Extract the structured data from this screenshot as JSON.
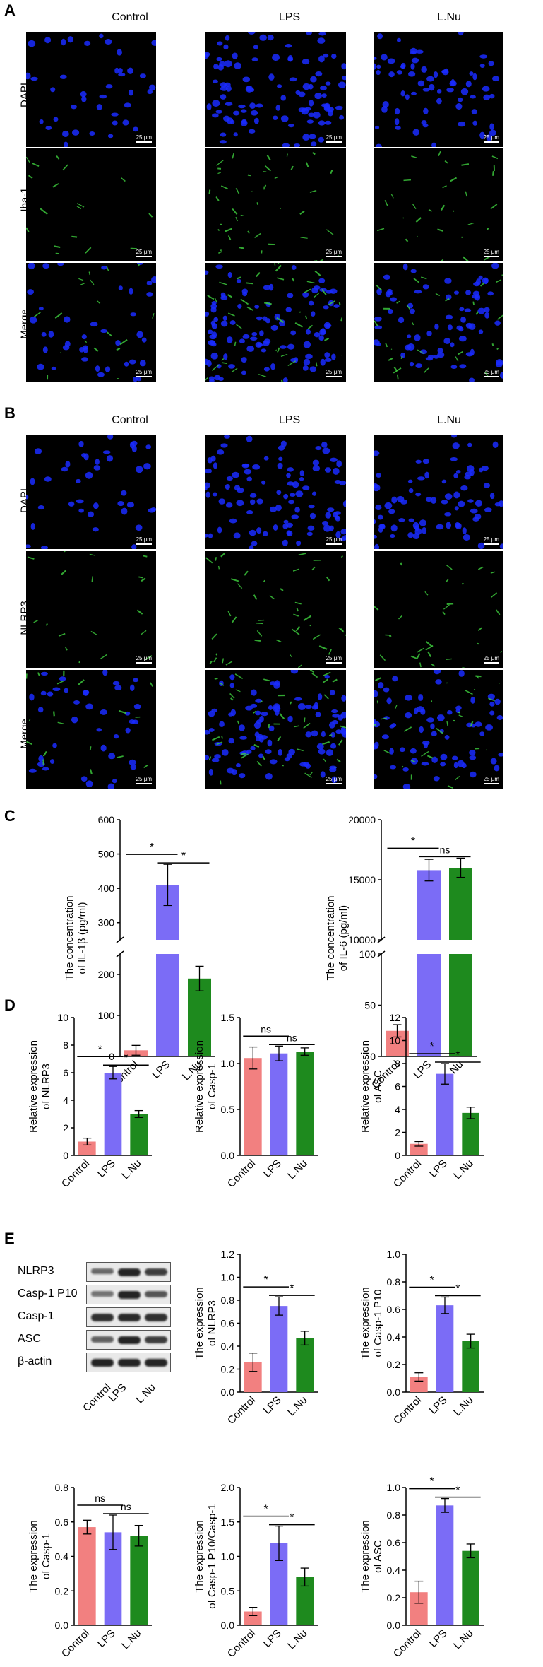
{
  "panels": {
    "A": "A",
    "B": "B",
    "C": "C",
    "D": "D",
    "E": "E"
  },
  "micrograph_columns": [
    "Control",
    "LPS",
    "L.Nu"
  ],
  "panelA_rows": [
    "DAPI",
    "Iba-1",
    "Merge"
  ],
  "panelB_rows": [
    "DAPI",
    "NLRP3",
    "Merge"
  ],
  "scale_bar": "25 μm",
  "blot_labels": [
    "NLRP3",
    "Casp-1 P10",
    "Casp-1",
    "ASC",
    "β-actin"
  ],
  "blot_categories": [
    "Control",
    "LPS",
    "L.Nu"
  ],
  "colors": {
    "control": "#f28080",
    "lps": "#7b6cf6",
    "lnu": "#1e8a1e",
    "dapi": "#1a2cff",
    "green": "#3fd13f"
  },
  "chart_data": [
    {
      "id": "c1",
      "type": "bar",
      "categories": [
        "Control",
        "LPS",
        "L.Nu"
      ],
      "values": [
        15,
        410,
        190
      ],
      "errors": [
        12,
        60,
        30
      ],
      "ylabel": "The concentration of IL-1β (pg/ml)",
      "broken_axis": {
        "lower": [
          0,
          250
        ],
        "upper": [
          250,
          600
        ]
      },
      "yticks": [
        0,
        100,
        200,
        300,
        400,
        500,
        600
      ],
      "significance": [
        {
          "label": "*",
          "from": 0,
          "to": 1
        },
        {
          "label": "*",
          "from": 1,
          "to": 2
        }
      ]
    },
    {
      "id": "c2",
      "type": "bar",
      "categories": [
        "Control",
        "LPS",
        "L.Nu"
      ],
      "values": [
        25,
        15800,
        16000
      ],
      "errors": [
        6,
        900,
        800
      ],
      "ylabel": "The concentration of IL-6 (pg/ml)",
      "broken_axis": {
        "lower": [
          0,
          100
        ],
        "upper": [
          10000,
          20000
        ]
      },
      "yticks": [
        0,
        50,
        100,
        10000,
        15000,
        20000
      ],
      "significance": [
        {
          "label": "*",
          "from": 0,
          "to": 1
        },
        {
          "label": "ns",
          "from": 1,
          "to": 2
        }
      ]
    },
    {
      "id": "d1",
      "type": "bar",
      "categories": [
        "Control",
        "LPS",
        "L.Nu"
      ],
      "values": [
        1.0,
        6.0,
        3.0
      ],
      "errors": [
        0.25,
        0.45,
        0.25
      ],
      "ylabel": "Relative expression of NLRP3",
      "ylim": [
        0,
        10
      ],
      "yticks": [
        0,
        2,
        4,
        6,
        8,
        10
      ],
      "significance": [
        {
          "label": "*",
          "from": 0,
          "to": 1
        },
        {
          "label": "*",
          "from": 1,
          "to": 2
        }
      ]
    },
    {
      "id": "d2",
      "type": "bar",
      "categories": [
        "Control",
        "LPS",
        "L.Nu"
      ],
      "values": [
        1.06,
        1.11,
        1.13
      ],
      "errors": [
        0.12,
        0.08,
        0.04
      ],
      "ylabel": "Relative expression of Casp-1",
      "ylim": [
        0,
        1.5
      ],
      "yticks": [
        0.0,
        0.5,
        1.0,
        1.5
      ],
      "significance": [
        {
          "label": "ns",
          "from": 0,
          "to": 1
        },
        {
          "label": "ns",
          "from": 1,
          "to": 2
        }
      ]
    },
    {
      "id": "d3",
      "type": "bar",
      "categories": [
        "Control",
        "LPS",
        "L.Nu"
      ],
      "values": [
        1.0,
        7.1,
        3.7
      ],
      "errors": [
        0.2,
        0.9,
        0.5
      ],
      "ylabel": "Relative expression of ASC",
      "ylim": [
        0,
        12
      ],
      "yticks": [
        0,
        2,
        4,
        6,
        8,
        10,
        12
      ],
      "significance": [
        {
          "label": "*",
          "from": 0,
          "to": 1
        },
        {
          "label": "*",
          "from": 1,
          "to": 2
        }
      ]
    },
    {
      "id": "e1",
      "type": "bar",
      "categories": [
        "Control",
        "LPS",
        "L.Nu"
      ],
      "values": [
        0.26,
        0.75,
        0.47
      ],
      "errors": [
        0.08,
        0.08,
        0.06
      ],
      "ylabel": "The expression of NLRP3",
      "ylim": [
        0,
        1.2
      ],
      "yticks": [
        0.0,
        0.2,
        0.4,
        0.6,
        0.8,
        1.0,
        1.2
      ],
      "significance": [
        {
          "label": "*",
          "from": 0,
          "to": 1
        },
        {
          "label": "*",
          "from": 1,
          "to": 2
        }
      ]
    },
    {
      "id": "e2",
      "type": "bar",
      "categories": [
        "Control",
        "LPS",
        "L.Nu"
      ],
      "values": [
        0.11,
        0.63,
        0.37
      ],
      "errors": [
        0.03,
        0.06,
        0.05
      ],
      "ylabel": "The expression of Casp-1 P10",
      "ylim": [
        0,
        1.0
      ],
      "yticks": [
        0.0,
        0.2,
        0.4,
        0.6,
        0.8,
        1.0
      ],
      "significance": [
        {
          "label": "*",
          "from": 0,
          "to": 1
        },
        {
          "label": "*",
          "from": 1,
          "to": 2
        }
      ]
    },
    {
      "id": "e3",
      "type": "bar",
      "categories": [
        "Control",
        "LPS",
        "L.Nu"
      ],
      "values": [
        0.57,
        0.54,
        0.52
      ],
      "errors": [
        0.04,
        0.1,
        0.06
      ],
      "ylabel": "The expression of Casp-1",
      "ylim": [
        0,
        0.8
      ],
      "yticks": [
        0.0,
        0.2,
        0.4,
        0.6,
        0.8
      ],
      "significance": [
        {
          "label": "ns",
          "from": 0,
          "to": 1
        },
        {
          "label": "ns",
          "from": 1,
          "to": 2
        }
      ]
    },
    {
      "id": "e4",
      "type": "bar",
      "categories": [
        "Control",
        "LPS",
        "L.Nu"
      ],
      "values": [
        0.2,
        1.19,
        0.7
      ],
      "errors": [
        0.06,
        0.25,
        0.13
      ],
      "ylabel": "The expression of Casp-1 P10/Casp-1",
      "ylim": [
        0,
        2.0
      ],
      "yticks": [
        0.0,
        0.5,
        1.0,
        1.5,
        2.0
      ],
      "significance": [
        {
          "label": "*",
          "from": 0,
          "to": 1
        },
        {
          "label": "*",
          "from": 1,
          "to": 2
        }
      ]
    },
    {
      "id": "e5",
      "type": "bar",
      "categories": [
        "Control",
        "LPS",
        "L.Nu"
      ],
      "values": [
        0.24,
        0.87,
        0.54
      ],
      "errors": [
        0.08,
        0.05,
        0.05
      ],
      "ylabel": "The expression of ASC",
      "ylim": [
        0,
        1.0
      ],
      "yticks": [
        0.0,
        0.2,
        0.4,
        0.6,
        0.8,
        1.0
      ],
      "significance": [
        {
          "label": "*",
          "from": 0,
          "to": 1
        },
        {
          "label": "*",
          "from": 1,
          "to": 2
        }
      ]
    }
  ]
}
